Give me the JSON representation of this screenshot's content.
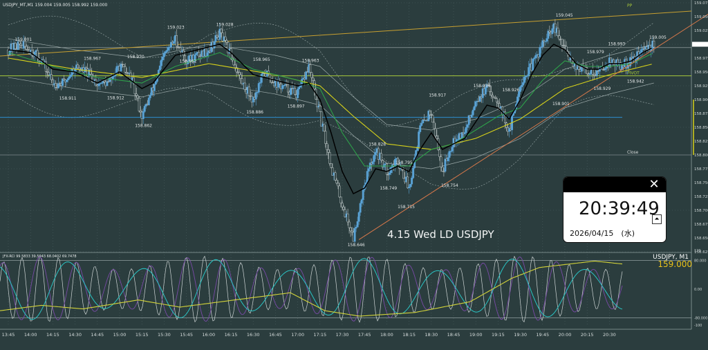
{
  "chart_title": "USDJPY_MT,M1  159.004 159.005 158.992 159.000",
  "annotation": "4.15 Wed LD USDJPY",
  "colors": {
    "background": "#2b3d3e",
    "grid": "#4d6062",
    "bull": "#5aa3d6",
    "bear": "#2b3d3e",
    "ma_black": "#000000",
    "ma_green": "#2ea04a",
    "ma_yellow": "#d7d21a",
    "trend_line": "#d7784a",
    "pivot": "#a8c93a",
    "rci_white": "#cfd6d6",
    "rci_cyan": "#2ac5c5",
    "rci_purple": "#7a4aa8",
    "rci_yellow": "#d4d43a"
  },
  "chart_data": {
    "type": "candlestick",
    "symbol": "USDJPY",
    "timeframe": "M1",
    "ylim": [
      158.625,
      159.075
    ],
    "price_ticks": [
      "159.075",
      "159.050",
      "159.025",
      "159.000",
      "158.975",
      "158.950",
      "158.925",
      "158.900",
      "158.875",
      "158.850",
      "158.825",
      "158.800",
      "158.775",
      "158.750",
      "158.725",
      "158.700",
      "158.675",
      "158.650",
      "158.625"
    ],
    "time_ticks": [
      "13:45",
      "14:00",
      "14:15",
      "14:30",
      "14:45",
      "15:00",
      "15:15",
      "15:30",
      "15:45",
      "16:00",
      "16:15",
      "16:30",
      "16:45",
      "17:00",
      "17:15",
      "17:30",
      "17:45",
      "18:00",
      "18:15",
      "18:30",
      "18:45",
      "19:00",
      "19:15",
      "19:30",
      "19:45",
      "20:00",
      "20:15",
      "20:30"
    ],
    "price_labels": [
      {
        "t": 1.2,
        "price": 159.001,
        "text": "159.001"
      },
      {
        "t": 5.2,
        "price": 158.911,
        "text": "158.911"
      },
      {
        "t": 7.4,
        "price": 158.967,
        "text": "158.967"
      },
      {
        "t": 9.5,
        "price": 158.912,
        "text": "158.912"
      },
      {
        "t": 11.3,
        "price": 158.97,
        "text": "158.970"
      },
      {
        "t": 12.0,
        "price": 158.862,
        "text": "158.862"
      },
      {
        "t": 14.9,
        "price": 159.023,
        "text": "159.023"
      },
      {
        "t": 16.0,
        "price": 158.962,
        "text": "158.962"
      },
      {
        "t": 19.3,
        "price": 159.028,
        "text": "159.028"
      },
      {
        "t": 22.0,
        "price": 158.886,
        "text": "158.886"
      },
      {
        "t": 22.6,
        "price": 158.965,
        "text": "158.965"
      },
      {
        "t": 25.7,
        "price": 158.897,
        "text": "158.897"
      },
      {
        "t": 27.0,
        "price": 158.963,
        "text": "158.963"
      },
      {
        "t": 31.1,
        "price": 158.646,
        "text": "158.646"
      },
      {
        "t": 33.0,
        "price": 158.828,
        "text": "158.828"
      },
      {
        "t": 34.0,
        "price": 158.749,
        "text": "158.749"
      },
      {
        "t": 35.4,
        "price": 158.795,
        "text": "158.795"
      },
      {
        "t": 35.6,
        "price": 158.715,
        "text": "158.715"
      },
      {
        "t": 38.4,
        "price": 158.917,
        "text": "158.917"
      },
      {
        "t": 39.5,
        "price": 158.754,
        "text": "158.754"
      },
      {
        "t": 42.4,
        "price": 158.934,
        "text": "158.934"
      },
      {
        "t": 45.0,
        "price": 158.926,
        "text": "158.926"
      },
      {
        "t": 49.5,
        "price": 158.901,
        "text": "158.901"
      },
      {
        "t": 49.8,
        "price": 159.045,
        "text": "159.045"
      },
      {
        "t": 52.6,
        "price": 158.979,
        "text": "158.979"
      },
      {
        "t": 53.2,
        "price": 158.929,
        "text": "158.929"
      },
      {
        "t": 54.5,
        "price": 158.993,
        "text": "158.993"
      },
      {
        "t": 56.2,
        "price": 158.942,
        "text": "158.942"
      },
      {
        "t": 58.2,
        "price": 159.005,
        "text": "159.005"
      }
    ],
    "level_labels": [
      {
        "name": "PP",
        "price": 159.075
      },
      {
        "name": "PIVOT",
        "price": 158.943
      },
      {
        "name": "Close",
        "price": 158.8
      }
    ],
    "path_knots": [
      [
        0,
        158.99
      ],
      [
        1,
        159.0
      ],
      [
        2,
        158.99
      ],
      [
        3,
        158.97
      ],
      [
        4,
        158.93
      ],
      [
        5,
        158.93
      ],
      [
        6,
        158.96
      ],
      [
        7,
        158.95
      ],
      [
        8,
        158.93
      ],
      [
        9,
        158.93
      ],
      [
        10,
        158.96
      ],
      [
        11,
        158.94
      ],
      [
        12,
        158.87
      ],
      [
        13,
        158.92
      ],
      [
        14,
        158.98
      ],
      [
        15,
        159.01
      ],
      [
        16,
        158.97
      ],
      [
        17,
        158.98
      ],
      [
        18,
        158.99
      ],
      [
        19,
        159.02
      ],
      [
        20,
        158.98
      ],
      [
        21,
        158.93
      ],
      [
        22,
        158.9
      ],
      [
        23,
        158.95
      ],
      [
        24,
        158.93
      ],
      [
        25,
        158.92
      ],
      [
        26,
        158.91
      ],
      [
        27,
        158.96
      ],
      [
        28,
        158.87
      ],
      [
        29,
        158.78
      ],
      [
        30,
        158.71
      ],
      [
        31,
        158.65
      ],
      [
        32,
        158.75
      ],
      [
        33,
        158.81
      ],
      [
        34,
        158.77
      ],
      [
        35,
        158.79
      ],
      [
        36,
        158.74
      ],
      [
        37,
        158.85
      ],
      [
        38,
        158.88
      ],
      [
        39,
        158.77
      ],
      [
        40,
        158.83
      ],
      [
        41,
        158.84
      ],
      [
        42,
        158.9
      ],
      [
        43,
        158.92
      ],
      [
        44,
        158.9
      ],
      [
        45,
        158.84
      ],
      [
        46,
        158.93
      ],
      [
        47,
        158.96
      ],
      [
        48,
        159.0
      ],
      [
        49,
        159.03
      ],
      [
        50,
        158.99
      ],
      [
        51,
        158.96
      ],
      [
        52,
        158.95
      ],
      [
        53,
        158.95
      ],
      [
        54,
        158.97
      ],
      [
        55,
        158.96
      ],
      [
        56,
        158.97
      ],
      [
        57,
        158.99
      ],
      [
        58,
        159.0
      ]
    ],
    "moving_averages": {
      "black": [
        [
          0,
          158.99
        ],
        [
          2,
          158.985
        ],
        [
          4,
          158.955
        ],
        [
          6,
          158.95
        ],
        [
          8,
          158.93
        ],
        [
          10,
          158.95
        ],
        [
          12,
          158.92
        ],
        [
          13,
          158.93
        ],
        [
          15,
          158.98
        ],
        [
          17,
          158.99
        ],
        [
          19,
          159.0
        ],
        [
          20,
          158.985
        ],
        [
          22,
          158.945
        ],
        [
          24,
          158.935
        ],
        [
          26,
          158.925
        ],
        [
          27,
          158.93
        ],
        [
          28,
          158.9
        ],
        [
          29,
          158.84
        ],
        [
          30,
          158.77
        ],
        [
          31,
          158.73
        ],
        [
          32,
          158.74
        ],
        [
          33,
          158.775
        ],
        [
          34,
          158.77
        ],
        [
          35,
          158.78
        ],
        [
          36,
          158.77
        ],
        [
          37,
          158.81
        ],
        [
          38,
          158.84
        ],
        [
          39,
          158.81
        ],
        [
          40,
          158.82
        ],
        [
          41,
          158.83
        ],
        [
          42,
          158.86
        ],
        [
          43,
          158.89
        ],
        [
          44,
          158.885
        ],
        [
          45,
          158.865
        ],
        [
          46,
          158.9
        ],
        [
          47,
          158.945
        ],
        [
          48,
          158.98
        ],
        [
          49,
          159.0
        ],
        [
          50,
          158.99
        ],
        [
          51,
          158.965
        ],
        [
          52,
          158.955
        ],
        [
          53,
          158.955
        ],
        [
          54,
          158.965
        ],
        [
          55,
          158.965
        ],
        [
          56,
          158.97
        ],
        [
          57,
          158.985
        ],
        [
          58,
          158.995
        ]
      ],
      "green": [
        [
          0,
          158.985
        ],
        [
          4,
          158.96
        ],
        [
          8,
          158.94
        ],
        [
          12,
          158.93
        ],
        [
          15,
          158.96
        ],
        [
          19,
          158.985
        ],
        [
          22,
          158.955
        ],
        [
          26,
          158.935
        ],
        [
          28,
          158.92
        ],
        [
          30,
          158.84
        ],
        [
          32,
          158.78
        ],
        [
          34,
          158.78
        ],
        [
          36,
          158.78
        ],
        [
          38,
          158.81
        ],
        [
          40,
          158.82
        ],
        [
          42,
          158.845
        ],
        [
          44,
          158.87
        ],
        [
          46,
          158.885
        ],
        [
          48,
          158.935
        ],
        [
          50,
          158.97
        ],
        [
          52,
          158.96
        ],
        [
          54,
          158.96
        ],
        [
          56,
          158.965
        ],
        [
          58,
          158.985
        ]
      ],
      "yellow": [
        [
          0,
          158.975
        ],
        [
          6,
          158.955
        ],
        [
          12,
          158.94
        ],
        [
          18,
          158.965
        ],
        [
          24,
          158.945
        ],
        [
          28,
          158.925
        ],
        [
          31,
          158.87
        ],
        [
          34,
          158.82
        ],
        [
          38,
          158.81
        ],
        [
          42,
          158.83
        ],
        [
          46,
          158.865
        ],
        [
          50,
          158.92
        ],
        [
          54,
          158.945
        ],
        [
          58,
          158.965
        ]
      ]
    },
    "trend_line": {
      "from": [
        31.5,
        158.647
      ],
      "to": [
        66,
        159.095
      ]
    },
    "rci": {
      "label": "JFX-RCI 99.5833 39.5043 68.0402 69.7478",
      "ylim": [
        -100,
        100
      ],
      "ticks": [
        "120",
        "80.000",
        "0.00",
        "-80.000",
        "-100"
      ],
      "symbol_label": "USDJPY, M1",
      "current_price": "159.000"
    }
  },
  "clock": {
    "close_icon": "close-icon",
    "time": "20:39:49",
    "date": "2026/04/15　(水)",
    "pin_icon": "pin-icon"
  }
}
